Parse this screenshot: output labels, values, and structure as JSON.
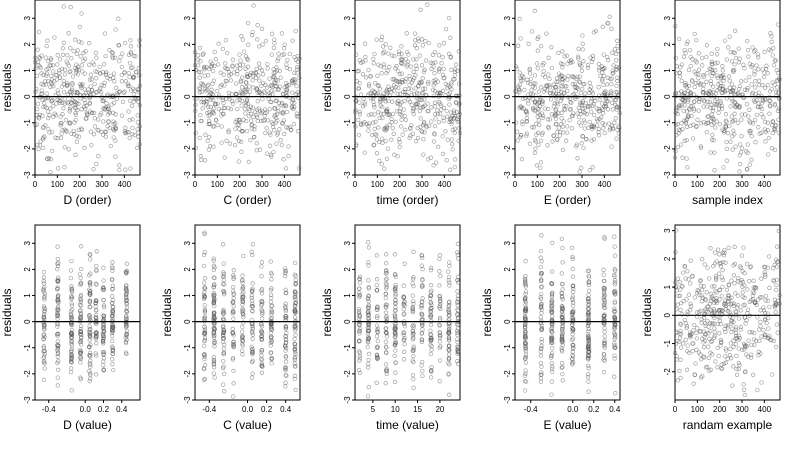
{
  "figure": {
    "layout": {
      "rows": 2,
      "cols": 5
    }
  },
  "chart_data": [
    {
      "type": "scatter",
      "xlabel": "D (order)",
      "ylabel": "residuals",
      "xlim": [
        0,
        470
      ],
      "ylim": [
        -3,
        3.7
      ],
      "xticks": [
        0,
        100,
        200,
        300,
        400
      ],
      "yticks": [
        -3,
        -2,
        -1,
        0,
        1,
        2,
        3
      ],
      "zero_line": true,
      "point_color": "#555555",
      "n_points": 470,
      "x_kind": "index",
      "structure": "uniform"
    },
    {
      "type": "scatter",
      "xlabel": "C (order)",
      "ylabel": "residuals",
      "xlim": [
        0,
        470
      ],
      "ylim": [
        -3,
        3.7
      ],
      "xticks": [
        0,
        100,
        200,
        300,
        400
      ],
      "yticks": [
        -3,
        -2,
        -1,
        0,
        1,
        2,
        3
      ],
      "zero_line": true,
      "point_color": "#555555",
      "n_points": 470,
      "x_kind": "index",
      "structure": "uniform"
    },
    {
      "type": "scatter",
      "xlabel": "time (order)",
      "ylabel": "residuals",
      "xlim": [
        0,
        470
      ],
      "ylim": [
        -3,
        3.7
      ],
      "xticks": [
        0,
        100,
        200,
        300,
        400
      ],
      "yticks": [
        -3,
        -2,
        -1,
        0,
        1,
        2,
        3
      ],
      "zero_line": true,
      "point_color": "#555555",
      "n_points": 470,
      "x_kind": "index",
      "structure": "uniform"
    },
    {
      "type": "scatter",
      "xlabel": "E (order)",
      "ylabel": "residuals",
      "xlim": [
        0,
        470
      ],
      "ylim": [
        -3,
        3.7
      ],
      "xticks": [
        0,
        100,
        200,
        300,
        400
      ],
      "yticks": [
        -3,
        -2,
        -1,
        0,
        1,
        2,
        3
      ],
      "zero_line": true,
      "point_color": "#555555",
      "n_points": 470,
      "x_kind": "index",
      "structure": "uniform"
    },
    {
      "type": "scatter",
      "xlabel": "sample index",
      "ylabel": "residuals",
      "xlim": [
        0,
        470
      ],
      "ylim": [
        -3,
        3.7
      ],
      "xticks": [
        0,
        100,
        200,
        300,
        400
      ],
      "yticks": [
        -3,
        -2,
        -1,
        0,
        1,
        2,
        3
      ],
      "zero_line": true,
      "point_color": "#555555",
      "n_points": 470,
      "x_kind": "index",
      "structure": "uniform"
    },
    {
      "type": "scatter",
      "xlabel": "D (value)",
      "ylabel": "residuals",
      "xlim": [
        -0.55,
        0.6
      ],
      "ylim": [
        -3,
        3.7
      ],
      "xticks": [
        -0.4,
        0.0,
        0.2,
        0.4
      ],
      "xtick_labels": [
        "-0.4",
        "0.0",
        "0.2",
        "0.4"
      ],
      "yticks": [
        -3,
        -2,
        -1,
        0,
        1,
        2,
        3
      ],
      "zero_line": true,
      "point_color": "#555555",
      "n_points": 470,
      "x_kind": "value",
      "structure": "clustered",
      "clusters": [
        -0.45,
        -0.3,
        -0.15,
        -0.05,
        0.05,
        0.12,
        0.2,
        0.3,
        0.45
      ]
    },
    {
      "type": "scatter",
      "xlabel": "C (value)",
      "ylabel": "residuals",
      "xlim": [
        -0.55,
        0.55
      ],
      "ylim": [
        -3,
        3.7
      ],
      "xticks": [
        -0.4,
        0.0,
        0.2,
        0.4
      ],
      "xtick_labels": [
        "-0.4",
        "0.0",
        "0.2",
        "0.4"
      ],
      "yticks": [
        -3,
        -2,
        -1,
        0,
        1,
        2,
        3
      ],
      "zero_line": true,
      "point_color": "#555555",
      "n_points": 470,
      "x_kind": "value",
      "structure": "clustered",
      "clusters": [
        -0.45,
        -0.35,
        -0.25,
        -0.15,
        -0.05,
        0.05,
        0.15,
        0.25,
        0.4,
        0.5
      ]
    },
    {
      "type": "scatter",
      "xlabel": "time (value)",
      "ylabel": "residuals",
      "xlim": [
        1,
        24.5
      ],
      "ylim": [
        -3,
        3.7
      ],
      "xticks": [
        5,
        10,
        15,
        20
      ],
      "yticks": [
        -3,
        -2,
        -1,
        0,
        1,
        2,
        3
      ],
      "zero_line": true,
      "point_color": "#555555",
      "n_points": 470,
      "x_kind": "value",
      "structure": "clustered",
      "clusters": [
        2,
        4,
        6,
        8,
        10,
        12,
        14,
        16,
        18,
        20,
        22,
        24
      ]
    },
    {
      "type": "scatter",
      "xlabel": "E (value)",
      "ylabel": "residuals",
      "xlim": [
        -0.55,
        0.45
      ],
      "ylim": [
        -3,
        3.7
      ],
      "xticks": [
        -0.4,
        0.0,
        0.2,
        0.4
      ],
      "xtick_labels": [
        "-0.4",
        "0.0",
        "0.2",
        "0.4"
      ],
      "yticks": [
        -3,
        -2,
        -1,
        0,
        1,
        2,
        3
      ],
      "zero_line": true,
      "point_color": "#555555",
      "n_points": 470,
      "x_kind": "value",
      "structure": "clustered",
      "clusters": [
        -0.45,
        -0.3,
        -0.2,
        -0.1,
        0.0,
        0.15,
        0.3,
        0.4
      ]
    },
    {
      "type": "scatter",
      "xlabel": "randam example",
      "ylabel": "residuals",
      "xlim": [
        0,
        470
      ],
      "ylim": [
        -3,
        3.2
      ],
      "xticks": [
        0,
        100,
        200,
        300,
        400
      ],
      "yticks": [
        -2,
        -1,
        0,
        1,
        2,
        3
      ],
      "zero_line": true,
      "point_color": "#555555",
      "n_points": 470,
      "x_kind": "index",
      "structure": "uniform"
    }
  ]
}
